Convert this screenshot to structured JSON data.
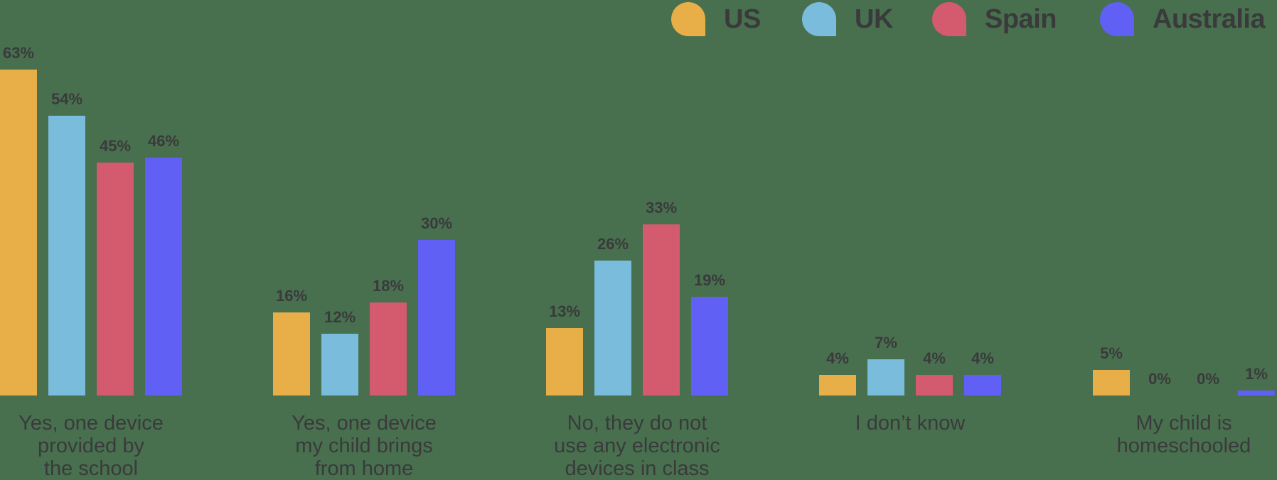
{
  "chart_data": {
    "type": "bar",
    "title": "",
    "xlabel": "",
    "ylabel": "",
    "ylim": [
      0,
      65
    ],
    "grid": false,
    "legend_position": "top-right",
    "categories": [
      "Yes, one device provided by the school",
      "Yes, one device my child brings from home",
      "No, they do not use any electronic devices in class",
      "I don’t know",
      "My child is homeschooled"
    ],
    "category_lines": [
      [
        "Yes, one device",
        "provided by",
        "the school"
      ],
      [
        "Yes, one device",
        "my child brings",
        "from home"
      ],
      [
        "No, they do not",
        "use any electronic",
        "devices in class"
      ],
      [
        "I don’t know"
      ],
      [
        "My child is",
        "homeschooled"
      ]
    ],
    "series": [
      {
        "name": "US",
        "color": "#e8ae47",
        "values": [
          63,
          16,
          13,
          4,
          5
        ]
      },
      {
        "name": "UK",
        "color": "#79bcdb",
        "values": [
          54,
          12,
          26,
          7,
          0
        ]
      },
      {
        "name": "Spain",
        "color": "#d45a6d",
        "values": [
          45,
          18,
          33,
          4,
          0
        ]
      },
      {
        "name": "Australia",
        "color": "#6060f5",
        "values": [
          46,
          30,
          19,
          4,
          1
        ]
      }
    ],
    "value_labels": [
      [
        "63%",
        "16%",
        "13%",
        "4%",
        "5%"
      ],
      [
        "54%",
        "12%",
        "26%",
        "7%",
        "0%"
      ],
      [
        "45%",
        "18%",
        "33%",
        "4%",
        "0%"
      ],
      [
        "46%",
        "30%",
        "19%",
        "4%",
        "1%"
      ]
    ]
  },
  "legend": {
    "items": [
      {
        "label": "US",
        "color": "#e8ae47"
      },
      {
        "label": "UK",
        "color": "#79bcdb"
      },
      {
        "label": "Spain",
        "color": "#d45a6d"
      },
      {
        "label": "Australia",
        "color": "#6060f5"
      }
    ]
  },
  "colors": {
    "background": "#48704e",
    "text": "#3a3a3c"
  }
}
